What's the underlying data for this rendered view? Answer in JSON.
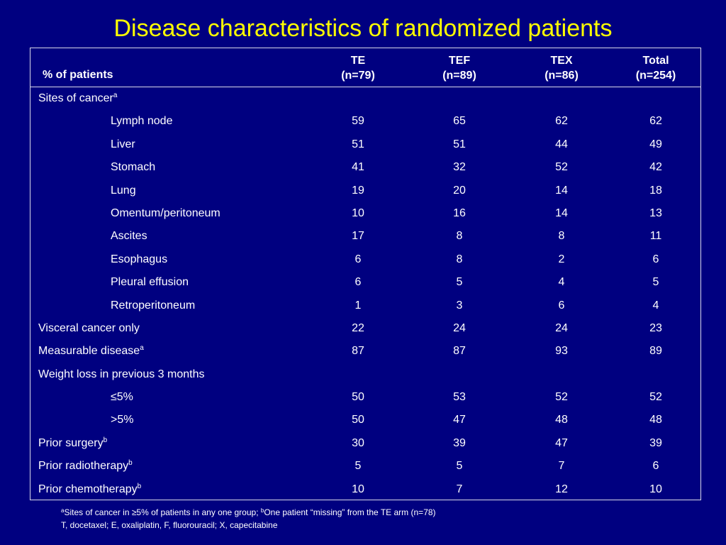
{
  "title": "Disease characteristics of randomized patients",
  "header": {
    "label": "% of patients",
    "columns": [
      {
        "name": "TE",
        "n": "(n=79)"
      },
      {
        "name": "TEF",
        "n": "(n=89)"
      },
      {
        "name": "TEX",
        "n": "(n=86)"
      },
      {
        "name": "Total",
        "n": "(n=254)"
      }
    ]
  },
  "rows": [
    {
      "label": "Sites of cancer",
      "sup": "a",
      "indent": false,
      "values": [
        "",
        "",
        "",
        ""
      ]
    },
    {
      "label": "Lymph node",
      "sup": "",
      "indent": true,
      "values": [
        "59",
        "65",
        "62",
        "62"
      ]
    },
    {
      "label": "Liver",
      "sup": "",
      "indent": true,
      "values": [
        "51",
        "51",
        "44",
        "49"
      ]
    },
    {
      "label": "Stomach",
      "sup": "",
      "indent": true,
      "values": [
        "41",
        "32",
        "52",
        "42"
      ]
    },
    {
      "label": "Lung",
      "sup": "",
      "indent": true,
      "values": [
        "19",
        "20",
        "14",
        "18"
      ]
    },
    {
      "label": "Omentum/peritoneum",
      "sup": "",
      "indent": true,
      "values": [
        "10",
        "16",
        "14",
        "13"
      ]
    },
    {
      "label": "Ascites",
      "sup": "",
      "indent": true,
      "values": [
        "17",
        "8",
        "8",
        "11"
      ]
    },
    {
      "label": "Esophagus",
      "sup": "",
      "indent": true,
      "values": [
        "6",
        "8",
        "2",
        "6"
      ]
    },
    {
      "label": "Pleural effusion",
      "sup": "",
      "indent": true,
      "values": [
        "6",
        "5",
        "4",
        "5"
      ]
    },
    {
      "label": "Retroperitoneum",
      "sup": "",
      "indent": true,
      "values": [
        "1",
        "3",
        "6",
        "4"
      ]
    },
    {
      "label": "Visceral cancer only",
      "sup": "",
      "indent": false,
      "values": [
        "22",
        "24",
        "24",
        "23"
      ]
    },
    {
      "label": "Measurable disease",
      "sup": "a",
      "indent": false,
      "values": [
        "87",
        "87",
        "93",
        "89"
      ]
    },
    {
      "label": "Weight loss in previous 3 months",
      "sup": "",
      "indent": false,
      "values": [
        "",
        "",
        "",
        ""
      ]
    },
    {
      "label": "≤5%",
      "sup": "",
      "indent": true,
      "values": [
        "50",
        "53",
        "52",
        "52"
      ]
    },
    {
      "label": ">5%",
      "sup": "",
      "indent": true,
      "values": [
        "50",
        "47",
        "48",
        "48"
      ]
    },
    {
      "label": "Prior surgery",
      "sup": "b",
      "indent": false,
      "values": [
        "30",
        "39",
        "47",
        "39"
      ]
    },
    {
      "label": "Prior radiotherapy",
      "sup": "b",
      "indent": false,
      "values": [
        "5",
        "5",
        "7",
        "6"
      ]
    },
    {
      "label": "Prior chemotherapy",
      "sup": "b",
      "indent": false,
      "values": [
        "10",
        "7",
        "12",
        "10"
      ]
    }
  ],
  "footnotes": {
    "line1_sup_a": "a",
    "line1_part1": "Sites of cancer in ≥5% of patients in any one group; ",
    "line1_sup_b": "b",
    "line1_part2": "One patient “missing” from the TE arm (n=78)",
    "line2": "T, docetaxel; E, oxaliplatin, F, fluorouracil; X, capecitabine"
  },
  "colors": {
    "background": "#000080",
    "title": "#ffff00",
    "text": "#ffffff"
  }
}
